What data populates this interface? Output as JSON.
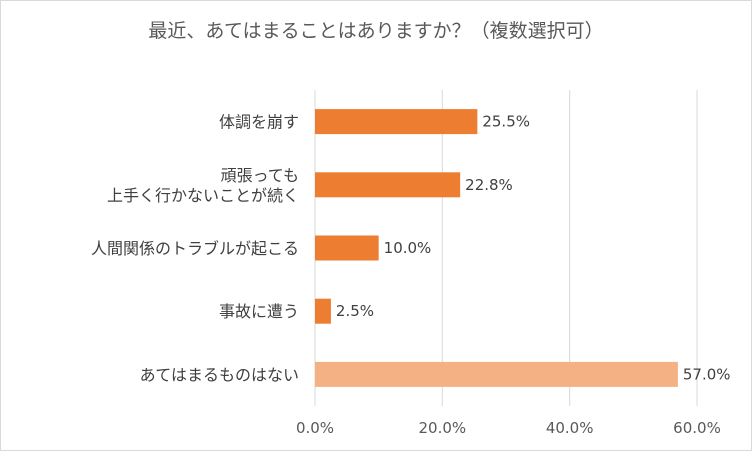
{
  "chart_data": {
    "type": "bar",
    "orientation": "horizontal",
    "title": "最近、あてはまることはありますか？（複数選択可）",
    "categories": [
      [
        "体調を崩す"
      ],
      [
        "頑張っても",
        "上手く行かないことが続く"
      ],
      [
        "人間関係のトラブルが起こる"
      ],
      [
        "事故に遭う"
      ],
      [
        "あてはまるものはない"
      ]
    ],
    "values": [
      25.5,
      22.8,
      10.0,
      2.5,
      57.0
    ],
    "value_labels": [
      "25.5%",
      "22.8%",
      "10.0%",
      "2.5%",
      "57.0%"
    ],
    "bar_colors": [
      "#ed7d31",
      "#ed7d31",
      "#ed7d31",
      "#ed7d31",
      "#f4b183"
    ],
    "xlim": [
      0,
      60
    ],
    "xticks": [
      0,
      20,
      40,
      60
    ],
    "xtick_labels": [
      "0.0%",
      "20.0%",
      "40.0%",
      "60.0%"
    ],
    "grid": "vertical",
    "gridline_color": "#d9d9d9"
  }
}
